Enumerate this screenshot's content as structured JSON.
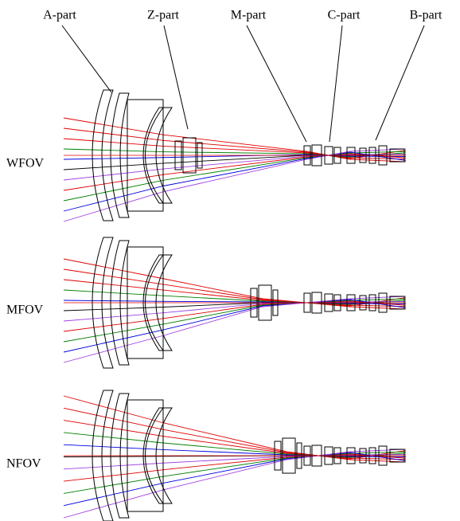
{
  "part_labels": [
    "A-part",
    "Z-part",
    "M-part",
    "C-part",
    "B-part"
  ],
  "configurations": [
    "WFOV",
    "MFOV",
    "NFOV"
  ]
}
